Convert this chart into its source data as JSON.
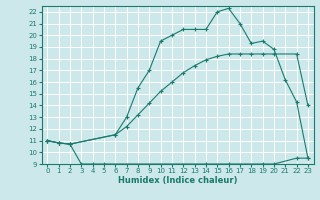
{
  "xlabel": "Humidex (Indice chaleur)",
  "xlim": [
    -0.5,
    23.5
  ],
  "ylim": [
    9,
    22.5
  ],
  "xticks": [
    0,
    1,
    2,
    3,
    4,
    5,
    6,
    7,
    8,
    9,
    10,
    11,
    12,
    13,
    14,
    15,
    16,
    17,
    18,
    19,
    20,
    21,
    22,
    23
  ],
  "yticks": [
    9,
    10,
    11,
    12,
    13,
    14,
    15,
    16,
    17,
    18,
    19,
    20,
    21,
    22
  ],
  "bg_color": "#cce8ea",
  "grid_color": "#ffffff",
  "line_color": "#1a7a6e",
  "line1_x": [
    0,
    1,
    2,
    3,
    4,
    5,
    14,
    16,
    19,
    20,
    22,
    23
  ],
  "line1_y": [
    11,
    10.8,
    10.7,
    9,
    9,
    9,
    9,
    9,
    9,
    9,
    9.5,
    9.5
  ],
  "line2_x": [
    0,
    1,
    2,
    6,
    7,
    8,
    9,
    10,
    11,
    12,
    13,
    14,
    15,
    16,
    17,
    18,
    19,
    20,
    22,
    23
  ],
  "line2_y": [
    11,
    10.8,
    10.7,
    11.5,
    12.2,
    13.2,
    14.2,
    15.2,
    16.0,
    16.8,
    17.4,
    17.9,
    18.2,
    18.4,
    18.4,
    18.4,
    18.4,
    18.4,
    18.4,
    14.0
  ],
  "line3_x": [
    0,
    1,
    2,
    6,
    7,
    8,
    9,
    10,
    11,
    12,
    13,
    14,
    15,
    16,
    17,
    18,
    19,
    20,
    21,
    22,
    23
  ],
  "line3_y": [
    11,
    10.8,
    10.7,
    11.5,
    13.0,
    15.5,
    17.0,
    19.5,
    20.0,
    20.5,
    20.5,
    20.5,
    22.0,
    22.3,
    21.0,
    19.3,
    19.5,
    18.8,
    16.2,
    14.3,
    9.5
  ],
  "figsize": [
    3.2,
    2.0
  ],
  "dpi": 100
}
